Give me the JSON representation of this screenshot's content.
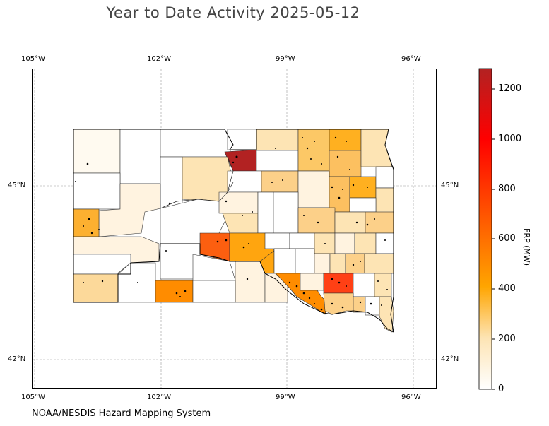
{
  "title": "Year to Date Activity 2025-05-12",
  "credit": "NOAA/NESDIS Hazard Mapping System",
  "longitude_labels": [
    "105°W",
    "102°W",
    "99°W",
    "96°W"
  ],
  "latitude_labels": [
    "45°N",
    "42°N"
  ],
  "colorbar": {
    "title": "FRP (MW)",
    "ticks": [
      "0",
      "200",
      "400",
      "600",
      "800",
      "1000",
      "1200"
    ],
    "max": 1280,
    "colors": [
      "#ffffff",
      "#fde4b4",
      "#ffa500",
      "#ff0000",
      "#b22222"
    ]
  }
}
